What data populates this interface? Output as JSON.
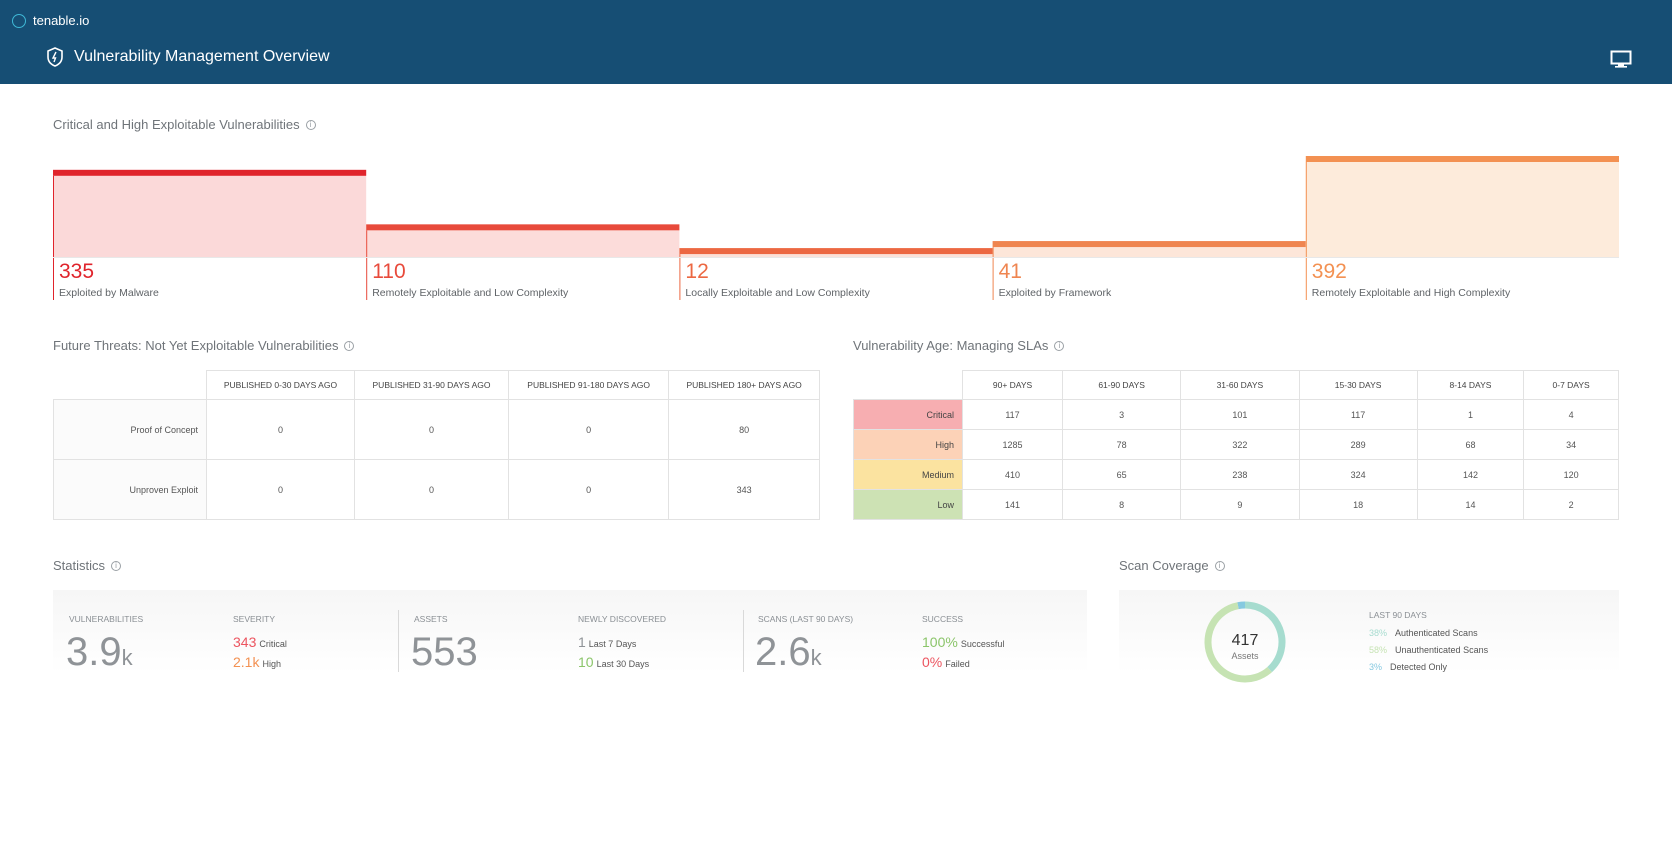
{
  "app": {
    "name": "tenable.io",
    "title": "Vulnerability Management Overview"
  },
  "colors": {
    "header": "#164e74",
    "critical": "#e5252b",
    "orange": "#f0874a",
    "green": "#8bc56a"
  },
  "exploitable": {
    "title": "Critical and High Exploitable Vulnerabilities",
    "bars": [
      {
        "value": "335",
        "label": "Exploited by Malware",
        "count": 335,
        "color": "#e0242c",
        "fill": "#fbd9d9"
      },
      {
        "value": "110",
        "label": "Remotely Exploitable and Low Complexity",
        "count": 110,
        "color": "#e84a3b",
        "fill": "#fcdcda"
      },
      {
        "value": "12",
        "label": "Locally Exploitable and Low Complexity",
        "count": 12,
        "color": "#ec6842",
        "fill": "#fce1d8"
      },
      {
        "value": "41",
        "label": "Exploited by Framework",
        "count": 41,
        "color": "#ef8550",
        "fill": "#fde6d9"
      },
      {
        "value": "392",
        "label": "Remotely Exploitable and High Complexity",
        "count": 392,
        "color": "#f39152",
        "fill": "#fdebdb"
      }
    ]
  },
  "future_threats": {
    "title": "Future Threats: Not Yet Exploitable Vulnerabilities",
    "columns": [
      "PUBLISHED 0-30 DAYS AGO",
      "PUBLISHED 31-90 DAYS AGO",
      "PUBLISHED 91-180 DAYS AGO",
      "PUBLISHED 180+ DAYS AGO"
    ],
    "rows": [
      {
        "label": "Proof of Concept",
        "values": [
          "0",
          "0",
          "0",
          "80"
        ]
      },
      {
        "label": "Unproven Exploit",
        "values": [
          "0",
          "0",
          "0",
          "343"
        ]
      }
    ]
  },
  "vuln_age": {
    "title": "Vulnerability Age: Managing SLAs",
    "columns": [
      "90+ DAYS",
      "61-90 DAYS",
      "31-60 DAYS",
      "15-30 DAYS",
      "8-14 DAYS",
      "0-7 DAYS"
    ],
    "rows": [
      {
        "label": "Critical",
        "color": "#f7aeb1",
        "values": [
          "117",
          "3",
          "101",
          "117",
          "1",
          "4"
        ]
      },
      {
        "label": "High",
        "color": "#fcd2b7",
        "values": [
          "1285",
          "78",
          "322",
          "289",
          "68",
          "34"
        ]
      },
      {
        "label": "Medium",
        "color": "#fbe3a0",
        "values": [
          "410",
          "65",
          "238",
          "324",
          "142",
          "120"
        ]
      },
      {
        "label": "Low",
        "color": "#cde2b4",
        "values": [
          "141",
          "8",
          "9",
          "18",
          "14",
          "2"
        ]
      }
    ]
  },
  "statistics": {
    "title": "Statistics",
    "vulnerabilities": {
      "label": "VULNERABILITIES",
      "value": "3.9",
      "unit": "k"
    },
    "severity": {
      "label": "SEVERITY",
      "critical_value": "343",
      "critical_label": "Critical",
      "high_value": "2.1k",
      "high_label": "High"
    },
    "assets": {
      "label": "ASSETS",
      "value": "553"
    },
    "newly_discovered": {
      "label": "NEWLY DISCOVERED",
      "week_value": "1",
      "week_label": "Last 7 Days",
      "month_value": "10",
      "month_label": "Last 30 Days"
    },
    "scans": {
      "label": "SCANS (LAST 90 DAYS)",
      "value": "2.6",
      "unit": "k"
    },
    "success": {
      "label": "SUCCESS",
      "success_value": "100%",
      "success_label": "Successful",
      "failed_value": "0%",
      "failed_label": "Failed"
    }
  },
  "scan_coverage": {
    "title": "Scan Coverage",
    "total": "417",
    "total_label": "Assets",
    "period": "LAST 90 DAYS",
    "segments": [
      {
        "percent": "38%",
        "label": "Authenticated Scans",
        "share": 38,
        "color": "#a6dccf"
      },
      {
        "percent": "58%",
        "label": "Unauthenticated Scans",
        "share": 58,
        "color": "#c6e3b3"
      },
      {
        "percent": "3%",
        "label": "Detected Only",
        "share": 3,
        "color": "#86c9e0"
      }
    ]
  }
}
